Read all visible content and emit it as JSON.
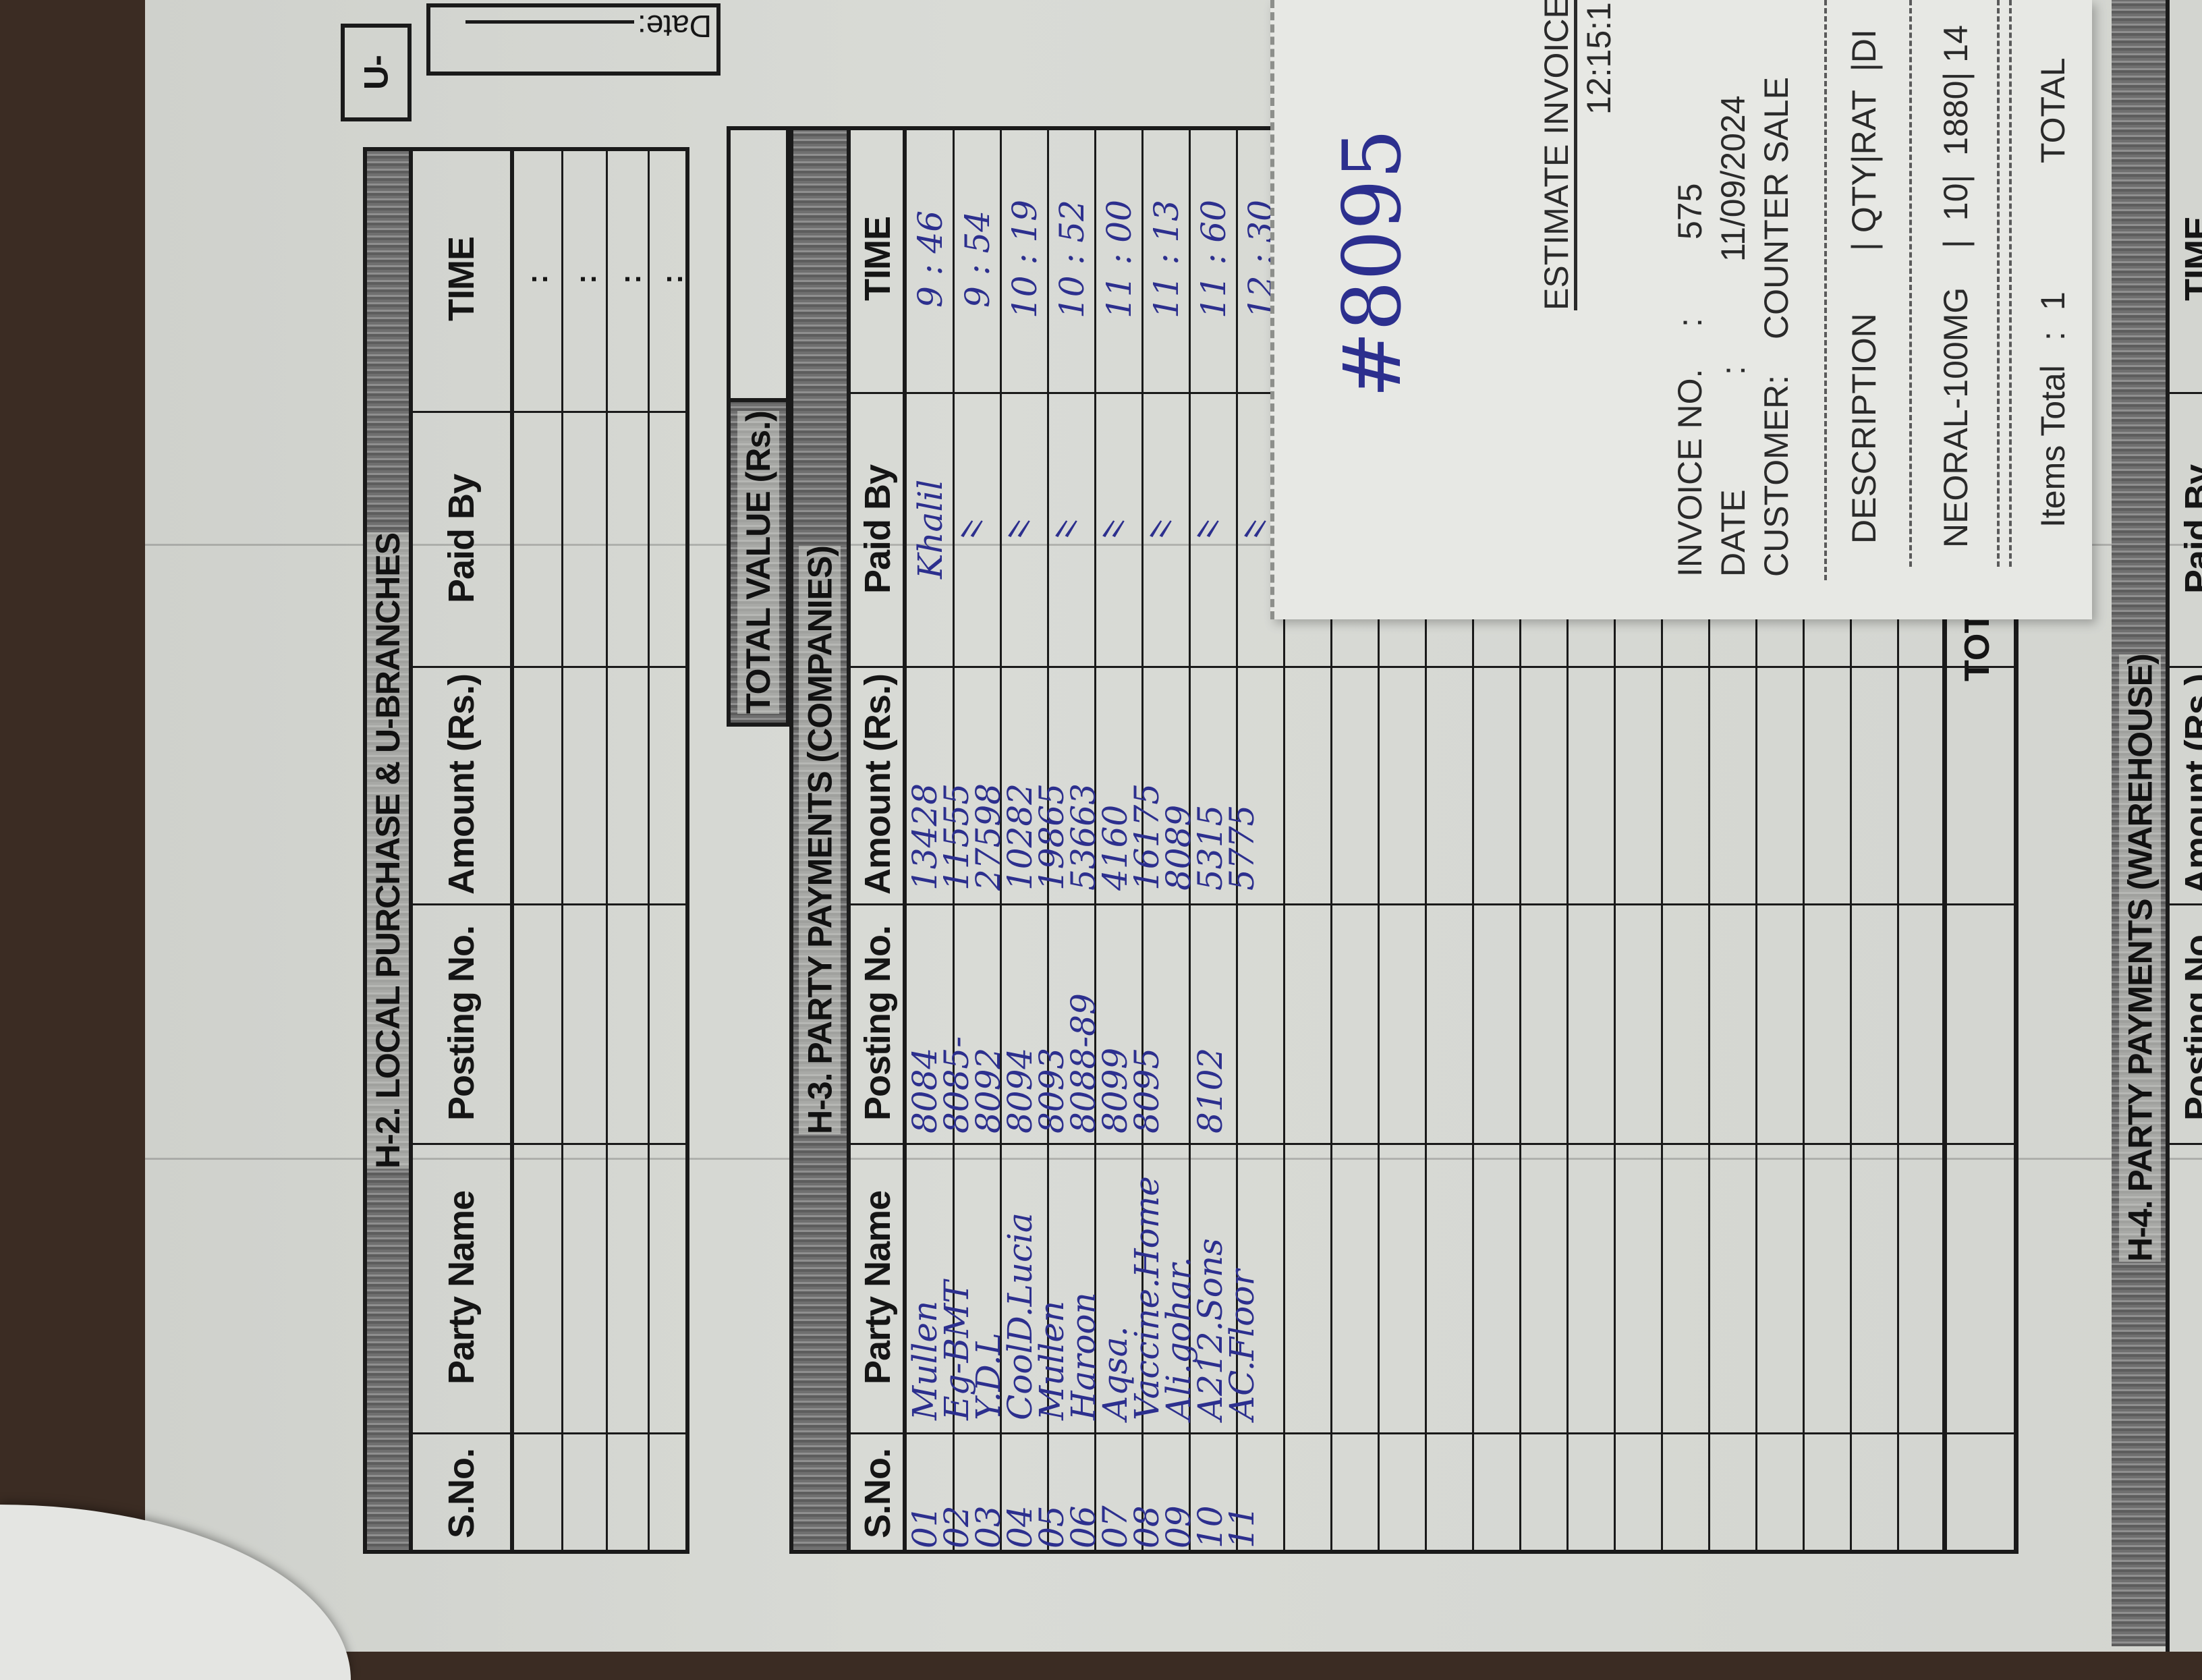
{
  "header": {
    "unit_label": "U-",
    "date_label": "Date:"
  },
  "h2": {
    "title": "H-2. LOCAL PURCHASE & U-BRANCHES",
    "columns": [
      "S.No.",
      "Party Name",
      "Posting No.",
      "Amount (Rs.)",
      "Paid By",
      "TIME"
    ],
    "time_placeholder": ":"
  },
  "total_value": {
    "label": "TOTAL VALUE (Rs.)"
  },
  "h3": {
    "title": "H-3. PARTY PAYMENTS (COMPANIES)",
    "columns": [
      "S.No.",
      "Party Name",
      "Posting No.",
      "Amount (Rs.)",
      "Paid By",
      "TIME"
    ],
    "rows": [
      {
        "sno": "01",
        "party": "Mullen",
        "posting": "8084",
        "amount": "13428"
      },
      {
        "sno": "02",
        "party": "Eg-BMT",
        "posting": "8085-",
        "amount": "11555"
      },
      {
        "sno": "03",
        "party": "Y.D.L",
        "posting": "8092",
        "amount": "27598"
      },
      {
        "sno": "04",
        "party": "CoolD.Lucia",
        "posting": "8094",
        "amount": "10282"
      },
      {
        "sno": "05",
        "party": "Mullen",
        "posting": "8093",
        "amount": "19865"
      },
      {
        "sno": "06",
        "party": "Haroon",
        "posting": "8088-89",
        "amount": "53663"
      },
      {
        "sno": "07",
        "party": "Aqsa.",
        "posting": "8099",
        "amount": "4160"
      },
      {
        "sno": "08",
        "party": "Vaccine.Home",
        "posting": "8095",
        "amount": "16175"
      },
      {
        "sno": "09",
        "party": "Ali.gohar.",
        "posting": "",
        "amount": "8089"
      },
      {
        "sno": "10",
        "party": "A212.Sons",
        "posting": "8102",
        "amount": "5315"
      },
      {
        "sno": "11",
        "party": "AC.Floor",
        "posting": "",
        "amount": "5775"
      }
    ],
    "paid_by": [
      "Khalil",
      "〃",
      "〃",
      "〃",
      "〃",
      "〃",
      "〃",
      "〃"
    ],
    "times": [
      "9 : 46",
      "9 : 54",
      "10 : 19",
      "10 : 52",
      "11 : 00",
      "11 : 13",
      "11 : 60",
      "12 : 30"
    ],
    "total_label": "TOTAL"
  },
  "note": "#8095",
  "receipt": {
    "title": "ESTIMATE INVOICE",
    "time": "12:15:1",
    "invoice_no_label": "INVOICE NO.",
    "invoice_no": "575",
    "date_label": "DATE",
    "date": "11/09/2024",
    "customer_label": "CUSTOMER:",
    "customer": "COUNTER SALE",
    "separator": ":",
    "columns_desc": "DESCRIPTION",
    "columns_rest": "| QTY|RAT  |DI",
    "item_desc": "NEORAL-100MG",
    "item_rest": "|  10|  1880| 14",
    "items_total_label": "Items Total",
    "items_total": "1",
    "total_label": "TOTAL"
  },
  "h4": {
    "title": "H-4. PARTY PAYMENTS (WAREHOUSE)",
    "columns": [
      "Posting No.",
      "Amount (Rs.)",
      "Paid By",
      "TIME"
    ]
  },
  "colors": {
    "ink": "#2c2f8e",
    "paper": "#d9dbd6",
    "receipt": "#e7e8e4"
  }
}
